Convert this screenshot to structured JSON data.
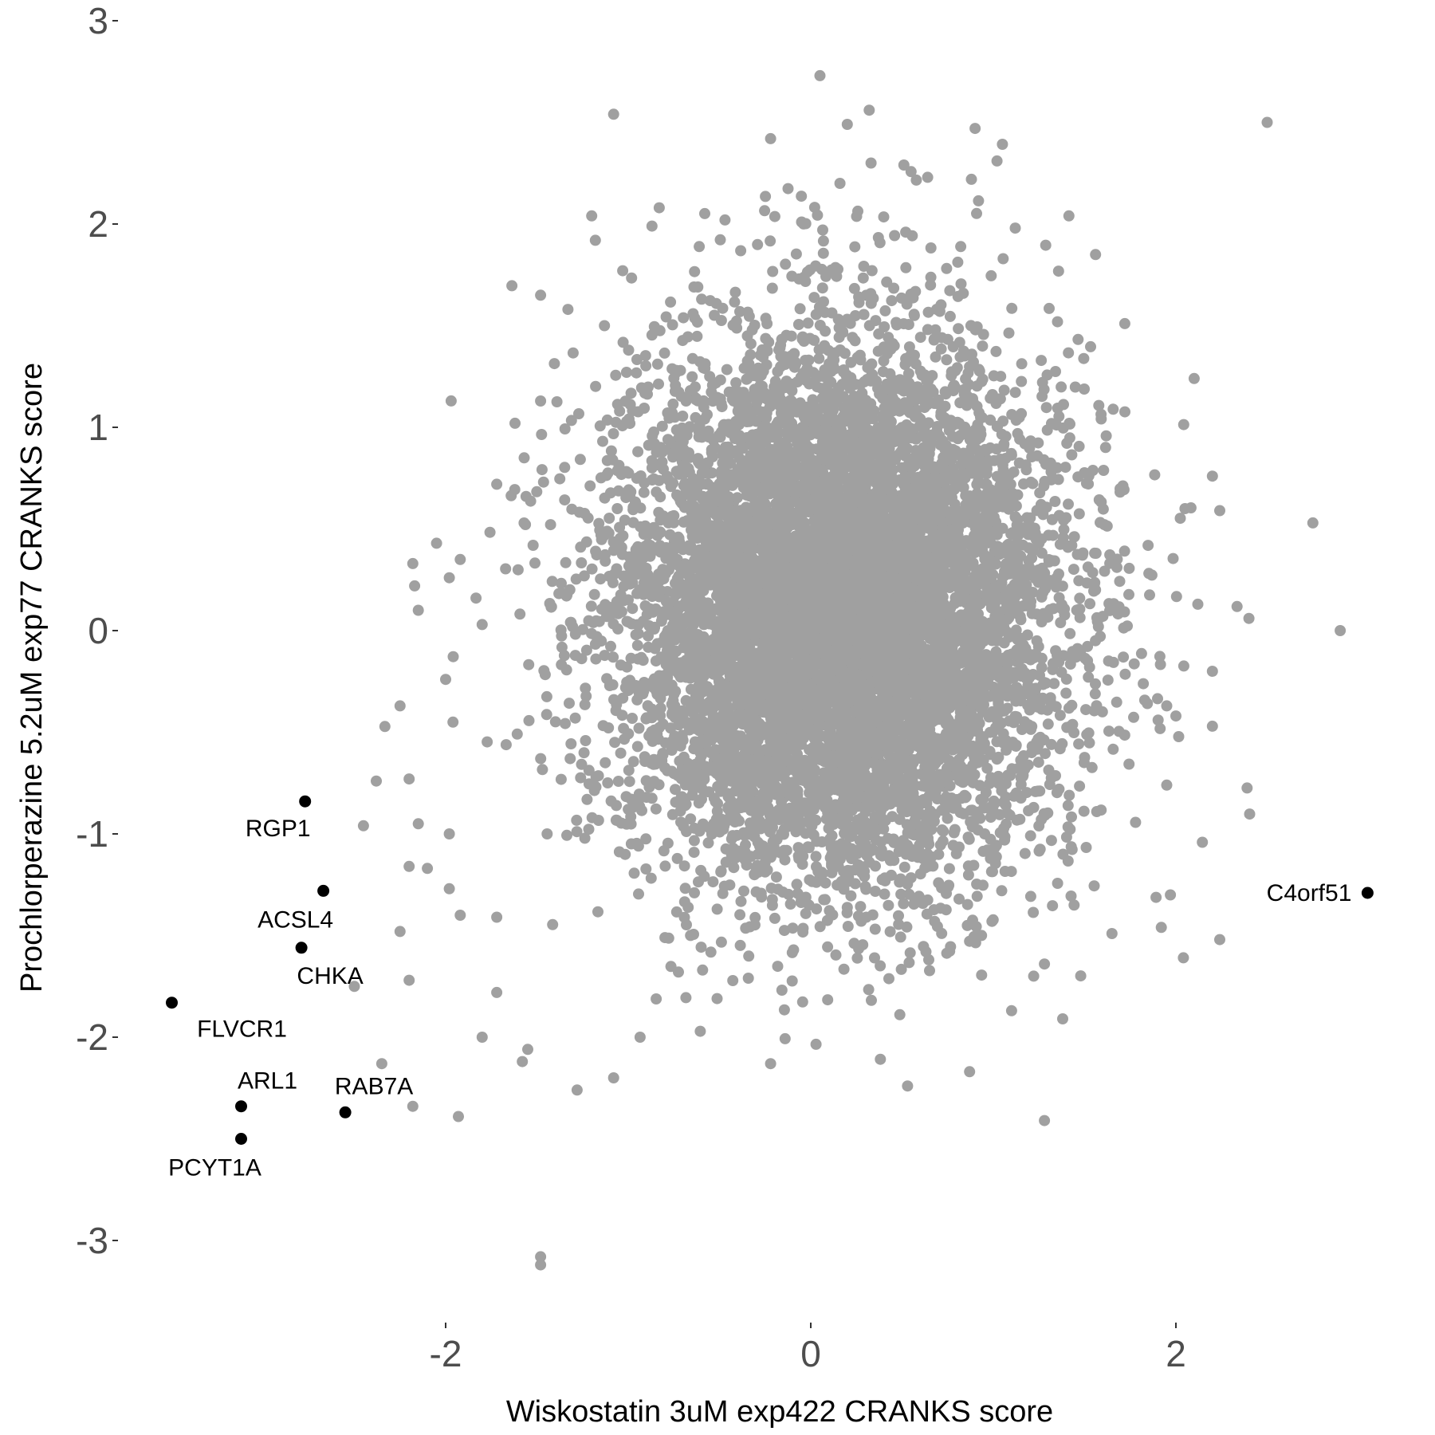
{
  "chart_data": {
    "type": "scatter",
    "xlabel": "Wiskostatin 3uM exp422 CRANKS score",
    "ylabel": "Prochlorperazine 5.2uM exp77 CRANKS score",
    "xlim": [
      -3.5,
      3.2
    ],
    "ylim": [
      -3.4,
      3.1
    ],
    "x_ticks": [
      -2,
      0,
      2
    ],
    "y_ticks": [
      -3,
      -2,
      -1,
      0,
      1,
      2,
      3
    ],
    "x_tick_labels": [
      "-2",
      "0",
      "2"
    ],
    "y_tick_labels": [
      "-3",
      "-2",
      "-1",
      "0",
      "1",
      "2",
      "3"
    ],
    "grid": false,
    "background_color": "#ffffff",
    "background_points": {
      "color": "#a0a0a0",
      "description_count": 9000,
      "distribution": {
        "center_x": 0.15,
        "center_y": 0.1,
        "sd_x": 0.6,
        "sd_y": 0.65
      },
      "points": [
        {
          "x": 0.05,
          "y": 2.73
        },
        {
          "x": -1.08,
          "y": 2.54
        },
        {
          "x": 0.32,
          "y": 2.56
        },
        {
          "x": 0.2,
          "y": 2.49
        },
        {
          "x": 2.5,
          "y": 2.5
        },
        {
          "x": 0.9,
          "y": 2.47
        },
        {
          "x": -0.22,
          "y": 2.42
        },
        {
          "x": 0.33,
          "y": 2.3
        },
        {
          "x": 0.51,
          "y": 2.29
        },
        {
          "x": 0.64,
          "y": 2.23
        },
        {
          "x": 0.88,
          "y": 2.22
        },
        {
          "x": 1.02,
          "y": 2.31
        },
        {
          "x": 0.16,
          "y": 2.2
        },
        {
          "x": -0.83,
          "y": 2.08
        },
        {
          "x": -1.2,
          "y": 2.04
        },
        {
          "x": -0.87,
          "y": 1.99
        },
        {
          "x": -1.18,
          "y": 1.92
        },
        {
          "x": -0.05,
          "y": 2.01
        },
        {
          "x": -0.47,
          "y": 2.02
        },
        {
          "x": 1.12,
          "y": 1.98
        },
        {
          "x": 0.52,
          "y": 1.96
        },
        {
          "x": 1.56,
          "y": 1.85
        },
        {
          "x": -1.03,
          "y": 1.77
        },
        {
          "x": -1.48,
          "y": 1.65
        },
        {
          "x": -1.33,
          "y": 1.58
        },
        {
          "x": -1.13,
          "y": 1.5
        },
        {
          "x": 1.72,
          "y": 1.51
        },
        {
          "x": 2.1,
          "y": 1.24
        },
        {
          "x": -1.97,
          "y": 1.13
        },
        {
          "x": -1.62,
          "y": 1.02
        },
        {
          "x": -1.57,
          "y": 0.85
        },
        {
          "x": -1.72,
          "y": 0.72
        },
        {
          "x": -2.05,
          "y": 0.43
        },
        {
          "x": -1.92,
          "y": 0.35
        },
        {
          "x": -1.98,
          "y": 0.26
        },
        {
          "x": -2.18,
          "y": 0.33
        },
        {
          "x": -2.17,
          "y": 0.22
        },
        {
          "x": -2.15,
          "y": 0.1
        },
        {
          "x": -1.8,
          "y": 0.03
        },
        {
          "x": -2.0,
          "y": -0.24
        },
        {
          "x": -2.25,
          "y": -0.37
        },
        {
          "x": -1.96,
          "y": -0.45
        },
        {
          "x": -2.38,
          "y": -0.74
        },
        {
          "x": -2.2,
          "y": -0.73
        },
        {
          "x": -2.45,
          "y": -0.96
        },
        {
          "x": -2.15,
          "y": -0.95
        },
        {
          "x": -2.2,
          "y": -1.16
        },
        {
          "x": -2.1,
          "y": -1.17
        },
        {
          "x": -1.98,
          "y": -1.0
        },
        {
          "x": -1.98,
          "y": -1.27
        },
        {
          "x": -1.92,
          "y": -1.4
        },
        {
          "x": -1.72,
          "y": -1.41
        },
        {
          "x": -2.25,
          "y": -1.48
        },
        {
          "x": -2.5,
          "y": -1.75
        },
        {
          "x": -1.72,
          "y": -1.78
        },
        {
          "x": -1.8,
          "y": -2.0
        },
        {
          "x": -1.58,
          "y": -2.12
        },
        {
          "x": -1.55,
          "y": -2.06
        },
        {
          "x": -2.35,
          "y": -2.13
        },
        {
          "x": -2.18,
          "y": -2.34
        },
        {
          "x": -1.93,
          "y": -2.39
        },
        {
          "x": -1.28,
          "y": -2.26
        },
        {
          "x": -1.08,
          "y": -2.2
        },
        {
          "x": -1.48,
          "y": -3.08
        },
        {
          "x": -1.48,
          "y": -3.12
        },
        {
          "x": -0.22,
          "y": -2.13
        },
        {
          "x": 0.53,
          "y": -2.24
        },
        {
          "x": 0.87,
          "y": -2.17
        },
        {
          "x": 1.28,
          "y": -2.41
        },
        {
          "x": 1.38,
          "y": -1.91
        },
        {
          "x": 1.28,
          "y": -1.64
        },
        {
          "x": 1.1,
          "y": -1.87
        },
        {
          "x": 1.65,
          "y": -1.49
        },
        {
          "x": 1.92,
          "y": -1.46
        },
        {
          "x": 2.24,
          "y": -1.52
        },
        {
          "x": 1.97,
          "y": -1.3
        },
        {
          "x": 2.4,
          "y": 0.06
        },
        {
          "x": 2.9,
          "y": 0.0
        },
        {
          "x": 2.75,
          "y": 0.53
        },
        {
          "x": 2.2,
          "y": 0.76
        },
        {
          "x": 2.24,
          "y": 0.59
        },
        {
          "x": 2.05,
          "y": 0.6
        },
        {
          "x": 2.12,
          "y": 0.13
        },
        {
          "x": 2.2,
          "y": -0.2
        },
        {
          "x": 2.2,
          "y": -0.47
        },
        {
          "x": 2.0,
          "y": -0.42
        },
        {
          "x": 1.95,
          "y": -0.37
        },
        {
          "x": 1.95,
          "y": -0.76
        }
      ]
    },
    "highlighted_points": [
      {
        "label": "RGP1",
        "x": -2.77,
        "y": -0.84
      },
      {
        "label": "ACSL4",
        "x": -2.67,
        "y": -1.28
      },
      {
        "label": "CHKA",
        "x": -2.79,
        "y": -1.56
      },
      {
        "label": "FLVCR1",
        "x": -3.5,
        "y": -1.83
      },
      {
        "label": "ARL1",
        "x": -3.12,
        "y": -2.34
      },
      {
        "label": "PCYT1A",
        "x": -3.12,
        "y": -2.5
      },
      {
        "label": "RAB7A",
        "x": -2.55,
        "y": -2.37
      },
      {
        "label": "C4orf51",
        "x": 3.05,
        "y": -1.29
      }
    ],
    "highlight_color": "#000000"
  }
}
